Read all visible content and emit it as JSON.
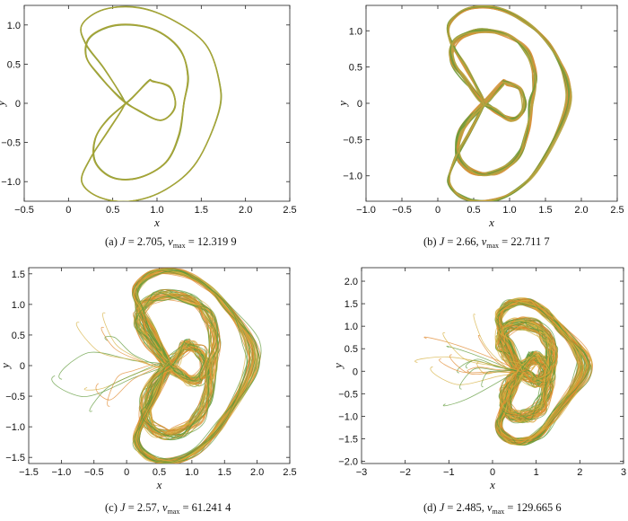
{
  "chart_data": [
    {
      "type": "line",
      "xlabel": "x",
      "ylabel": "y",
      "xlim": [
        -0.5,
        2.5
      ],
      "ylim": [
        -1.25,
        1.25
      ],
      "xticks": [
        "−0.5",
        "0",
        "0.5",
        "1.0",
        "1.5",
        "2.0",
        "2.5"
      ],
      "yticks": [
        "−1.0",
        "−0.5",
        "0",
        "0.5",
        "1.0"
      ],
      "caption": {
        "label": "(a) ",
        "param": "J",
        "J_eq": " = 2.705, ",
        "v": "v",
        "v_sub": "max",
        "v_eq": " = 12.319 9"
      },
      "J": 2.705,
      "v_max": 12.3199,
      "series": [
        {
          "color": "#a8a437",
          "inner_lobe_points": [
            [
              0.55,
              0.9
            ],
            [
              1.3,
              0.75
            ],
            [
              1.2,
              -0.1
            ],
            [
              0.55,
              -0.5
            ]
          ],
          "outer_shell_x": [
            0.3,
            1.7
          ]
        },
        {
          "color": "#7f9c3a"
        }
      ]
    },
    {
      "type": "line",
      "xlabel": "x",
      "ylabel": "y",
      "xlim": [
        -1.0,
        2.5
      ],
      "ylim": [
        -1.35,
        1.35
      ],
      "xticks": [
        "−1.0",
        "−0.5",
        "0",
        "0.5",
        "1.0",
        "1.5",
        "2.0",
        "2.5"
      ],
      "yticks": [
        "−1.0",
        "−0.5",
        "0",
        "0.5",
        "1.0"
      ],
      "caption": {
        "label": "(b) ",
        "param": "J",
        "J_eq": " = 2.66, ",
        "v": "v",
        "v_sub": "max",
        "v_eq": " = 22.711 7"
      },
      "J": 2.66,
      "v_max": 22.7117,
      "series": [
        {
          "color": "#6f9a3a"
        },
        {
          "color": "#b8a440"
        },
        {
          "color": "#d8903a"
        }
      ]
    },
    {
      "type": "line",
      "xlabel": "x",
      "ylabel": "y",
      "xlim": [
        -1.5,
        2.5
      ],
      "ylim": [
        -1.6,
        1.6
      ],
      "xticks": [
        "−1.5",
        "−1.0",
        "−0.5",
        "0",
        "0.5",
        "1.0",
        "1.5",
        "2.0",
        "2.5"
      ],
      "yticks": [
        "−1.5",
        "−1.0",
        "−0.5",
        "0",
        "0.5",
        "1.0",
        "1.5"
      ],
      "caption": {
        "label": "(c) ",
        "param": "J",
        "J_eq": " = 2.57, ",
        "v": "v",
        "v_sub": "max",
        "v_eq": " = 61.241 4"
      },
      "J": 2.57,
      "v_max": 61.2414,
      "series": [
        {
          "color": "#5f9a3a"
        },
        {
          "color": "#e0882e"
        },
        {
          "color": "#d6b040"
        }
      ]
    },
    {
      "type": "line",
      "xlabel": "x",
      "ylabel": "y",
      "xlim": [
        -3,
        3
      ],
      "ylim": [
        -2.05,
        2.3
      ],
      "xticks": [
        "−3",
        "−2",
        "−1",
        "0",
        "1",
        "2",
        "3"
      ],
      "yticks": [
        "−2.0",
        "−1.5",
        "−1.0",
        "−0.5",
        "0",
        "0.5",
        "1.0",
        "1.5",
        "2.0"
      ],
      "caption": {
        "label": "(d) ",
        "param": "J",
        "J_eq": " = 2.485, ",
        "v": "v",
        "v_sub": "max",
        "v_eq": " = 129.665 6"
      },
      "J": 2.485,
      "v_max": 129.6656,
      "series": [
        {
          "color": "#5f9a3a"
        },
        {
          "color": "#e0882e"
        },
        {
          "color": "#d6b040"
        }
      ]
    }
  ]
}
